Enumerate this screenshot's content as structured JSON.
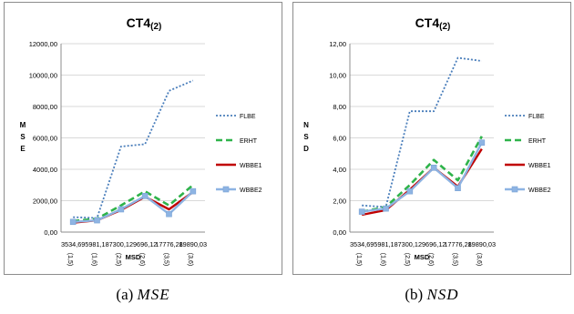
{
  "chart_data": [
    {
      "type": "line",
      "title": "CT4",
      "title_sub": "(2)",
      "xlabel": "MSD",
      "ylabel_letters": [
        "M",
        "S",
        "E"
      ],
      "ylim": [
        0,
        12000
      ],
      "yticks": [
        "0,00",
        "2000,00",
        "4000,00",
        "6000,00",
        "8000,00",
        "10000,00",
        "12000,00"
      ],
      "ytick_values": [
        0,
        2000,
        4000,
        6000,
        8000,
        10000,
        12000
      ],
      "categories": [
        "3534,69",
        "5981,18",
        "7300,12",
        "9696,12",
        "17776,28",
        "19890,03"
      ],
      "subcategories": [
        "(1,5)",
        "(1,6)",
        "(2,5)",
        "(2,6)",
        "(3,5)",
        "(3,6)"
      ],
      "grid": true,
      "legend_position": "right",
      "series": [
        {
          "name": "FLBE",
          "values": [
            950,
            900,
            5450,
            5600,
            9000,
            9650
          ],
          "color": "#4a7ebb",
          "style": "dotted"
        },
        {
          "name": "ERHT",
          "values": [
            700,
            850,
            1700,
            2600,
            1700,
            3000
          ],
          "color": "#2eb34a",
          "style": "dashed"
        },
        {
          "name": "WBBE1",
          "values": [
            600,
            750,
            1400,
            2250,
            1450,
            2550
          ],
          "color": "#c00000",
          "style": "solid"
        },
        {
          "name": "WBBE2",
          "values": [
            650,
            750,
            1450,
            2300,
            1150,
            2600
          ],
          "color": "#8eb4e3",
          "style": "marker"
        }
      ]
    },
    {
      "type": "line",
      "title": "CT4",
      "title_sub": "(2)",
      "xlabel": "MSD",
      "ylabel_letters": [
        "N",
        "S",
        "D"
      ],
      "ylim": [
        0,
        12
      ],
      "yticks": [
        "0,00",
        "2,00",
        "4,00",
        "6,00",
        "8,00",
        "10,00",
        "12,00"
      ],
      "ytick_values": [
        0,
        2,
        4,
        6,
        8,
        10,
        12
      ],
      "categories": [
        "3534,69",
        "5981,18",
        "7300,12",
        "9696,12",
        "17776,28",
        "19890,03"
      ],
      "subcategories": [
        "(1,5)",
        "(1,6)",
        "(2,5)",
        "(2,6)",
        "(3,5)",
        "(3,6)"
      ],
      "grid": true,
      "legend_position": "right",
      "series": [
        {
          "name": "FLBE",
          "values": [
            1.7,
            1.6,
            7.7,
            7.7,
            11.1,
            10.9
          ],
          "color": "#4a7ebb",
          "style": "dotted"
        },
        {
          "name": "ERHT",
          "values": [
            1.3,
            1.6,
            3.0,
            4.6,
            3.3,
            6.1
          ],
          "color": "#2eb34a",
          "style": "dashed"
        },
        {
          "name": "WBBE1",
          "values": [
            1.1,
            1.4,
            2.7,
            4.1,
            2.9,
            5.3
          ],
          "color": "#c00000",
          "style": "solid"
        },
        {
          "name": "WBBE2",
          "values": [
            1.3,
            1.5,
            2.6,
            4.1,
            2.8,
            5.7
          ],
          "color": "#8eb4e3",
          "style": "marker"
        }
      ]
    }
  ],
  "captions": [
    {
      "label": "(a)",
      "math": "MSE"
    },
    {
      "label": "(b)",
      "math": "NSD"
    }
  ]
}
